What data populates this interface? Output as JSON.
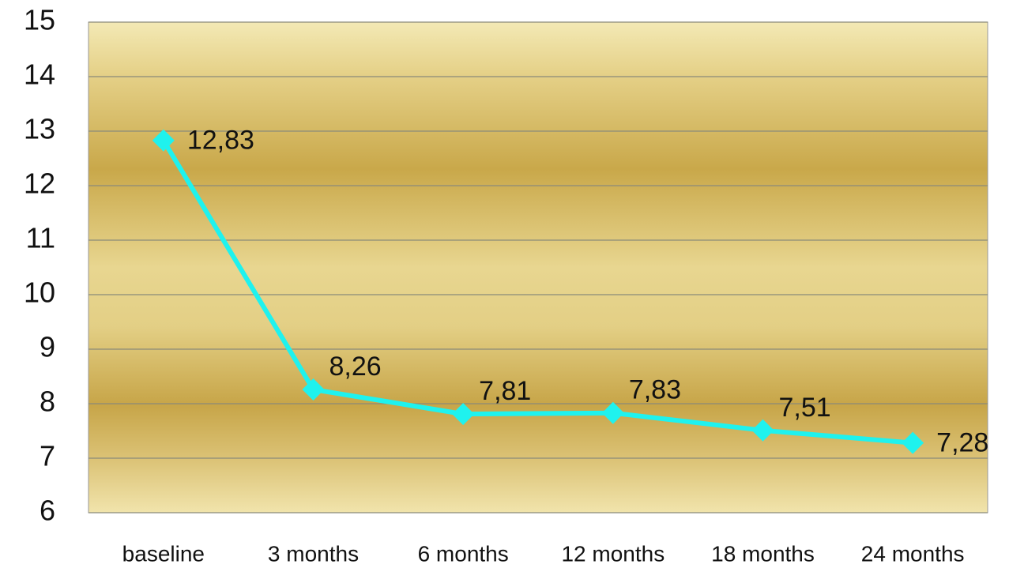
{
  "chart_data": {
    "type": "line",
    "categories": [
      "baseline",
      "3 months",
      "6 months",
      "12 months",
      "18 months",
      "24 months"
    ],
    "series": [
      {
        "color": "#1ff2ee",
        "values": [
          12.83,
          8.26,
          7.81,
          7.83,
          7.51,
          7.28
        ],
        "value_labels": [
          "12,83",
          "8,26",
          "7,81",
          "7,83",
          "7,51",
          "7,28"
        ]
      }
    ],
    "ylim": [
      6,
      15
    ],
    "yticks": [
      6,
      7,
      8,
      9,
      10,
      11,
      12,
      13,
      14,
      15
    ],
    "grid": true
  }
}
